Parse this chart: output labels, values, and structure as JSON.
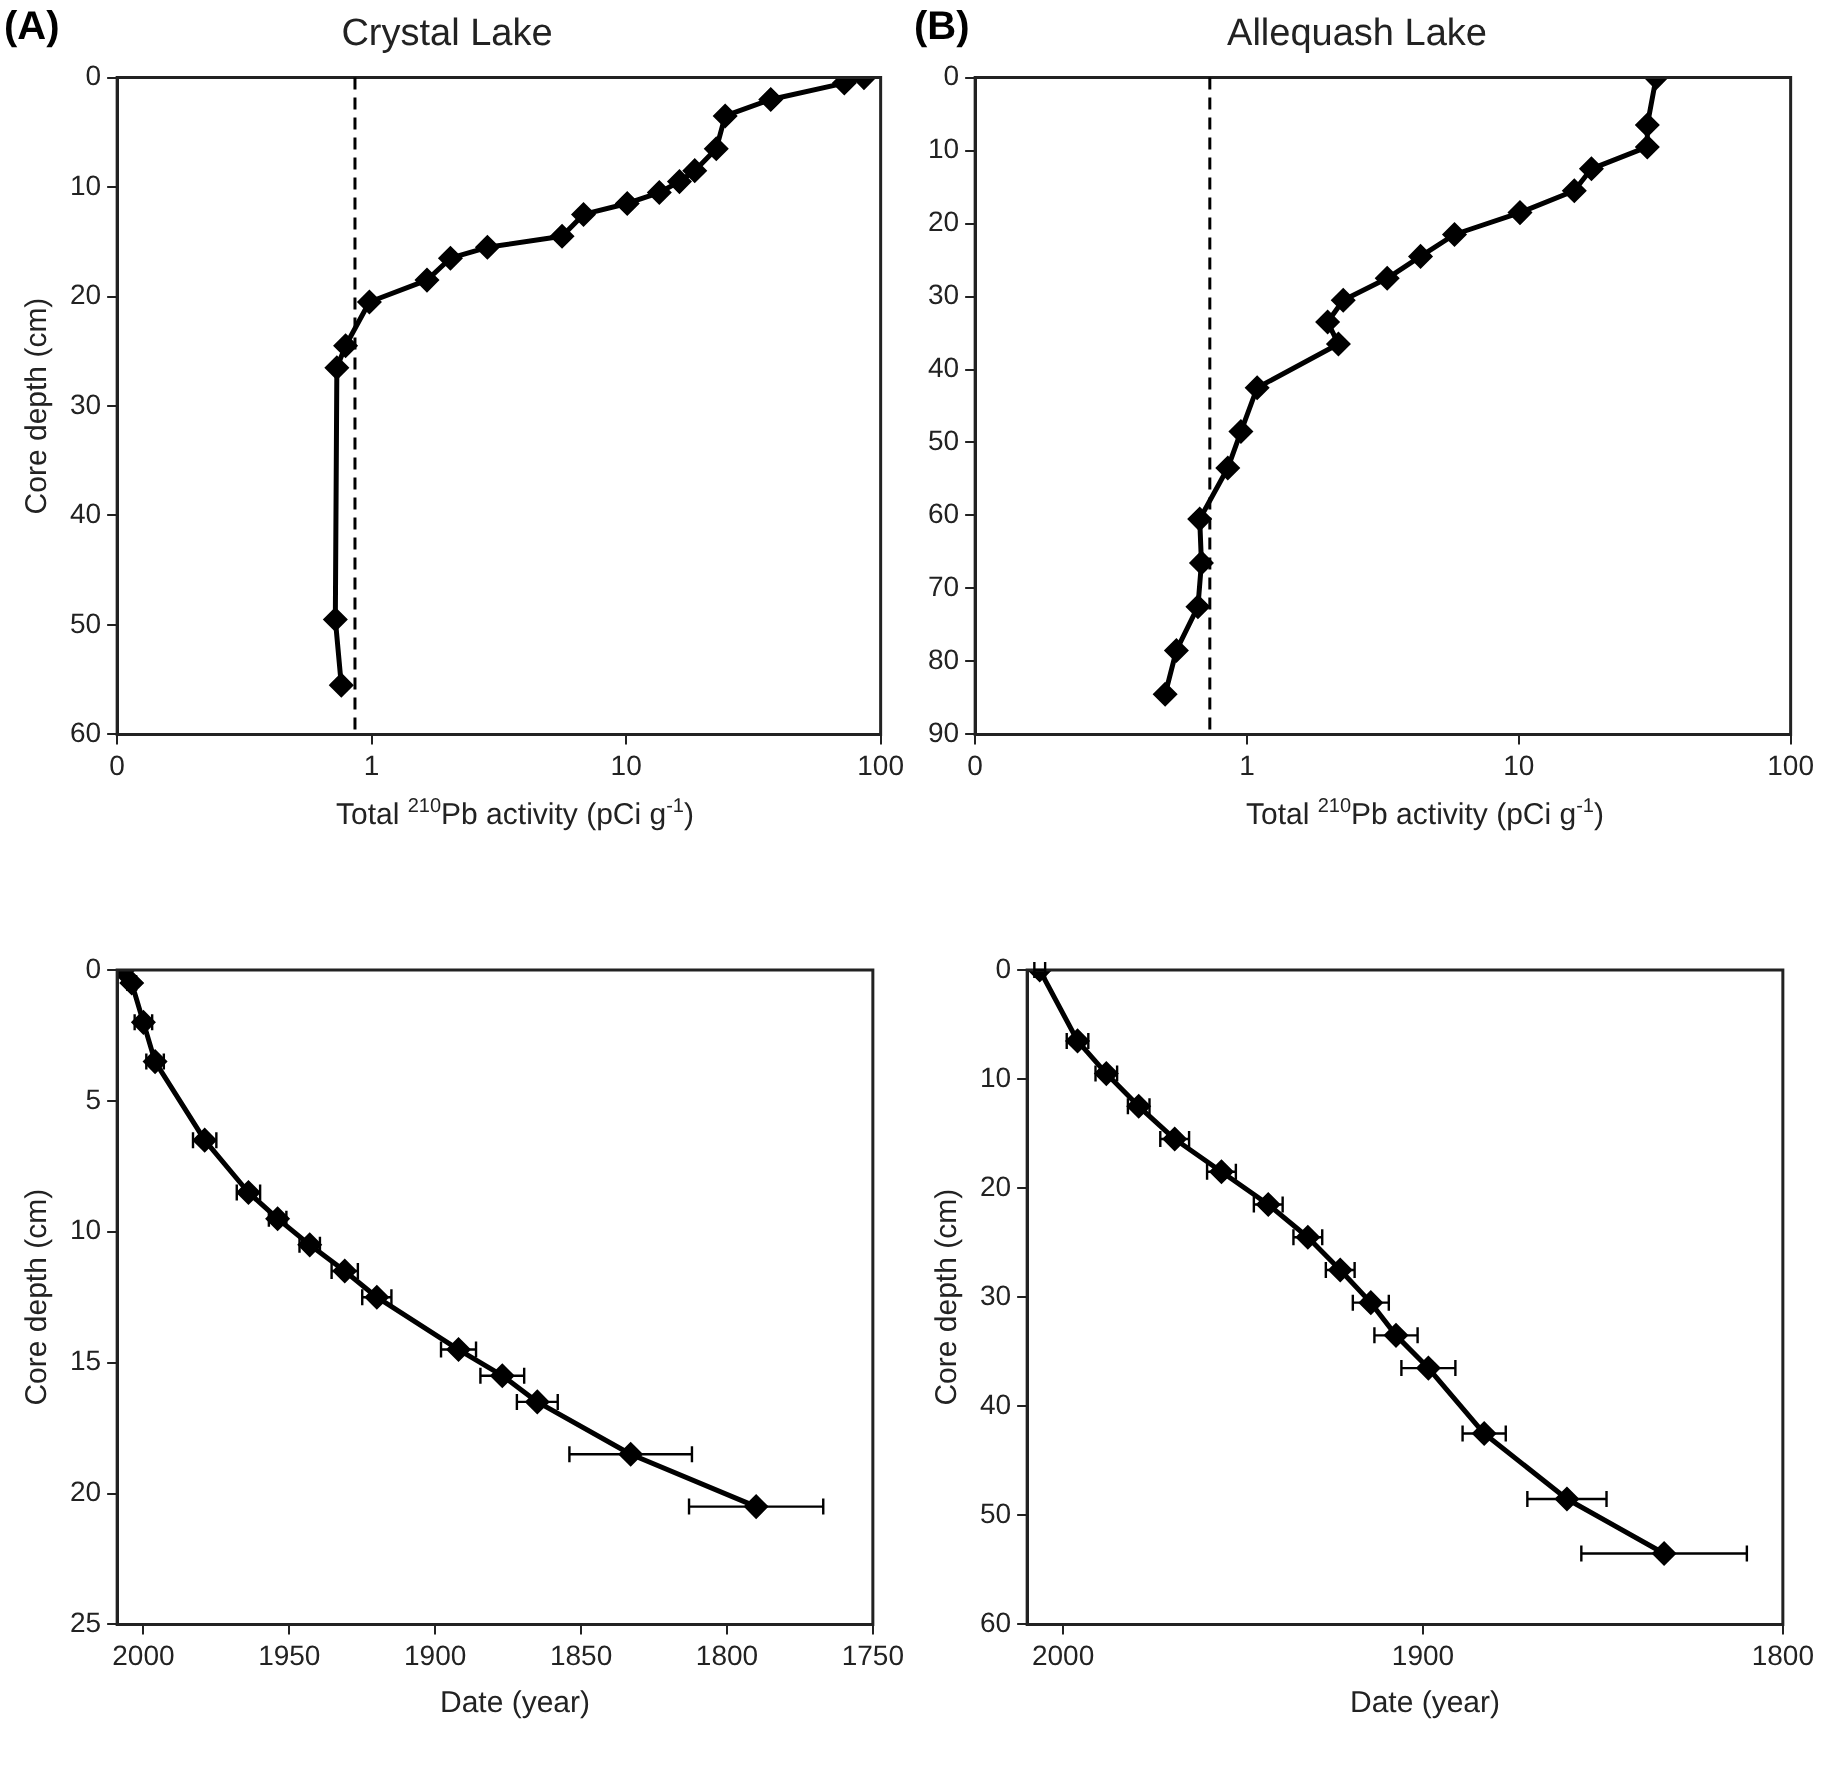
{
  "chart_data": [
    {
      "type": "line",
      "title": "Crystal Lake",
      "xlabel": "Total $^{210}$Pb activity (pCi g$^{-1}$)",
      "ylabel": "Core depth (cm)",
      "annotations": [
        "(A)"
      ],
      "log": "x",
      "xlim": [
        0.1,
        100
      ],
      "xticks": [
        {
          "value": 0.1,
          "label": "0"
        },
        1,
        10,
        100
      ],
      "ylim": [
        60,
        0
      ],
      "yticks": [
        0,
        10,
        20,
        30,
        40,
        50,
        60
      ],
      "grid": false,
      "legend": false,
      "marker": "diamond",
      "line_style": "solid",
      "series": [
        {
          "color": "#000000",
          "x": [
            86,
            72,
            37,
            24.5,
            22.6,
            18.6,
            16.2,
            13.5,
            10.1,
            6.8,
            5.6,
            2.85,
            2.04,
            1.65,
            0.98,
            0.79,
            0.73,
            0.72,
            0.76
          ],
          "values": [
            0,
            0.5,
            2,
            3.5,
            6.5,
            8.5,
            9.5,
            10.5,
            11.5,
            12.5,
            14.5,
            15.5,
            16.5,
            18.5,
            20.5,
            24.5,
            26.5,
            49.5,
            55.5
          ]
        }
      ],
      "ref_lines": [
        {
          "axis": "x",
          "value": 0.86,
          "line_style": "dashed",
          "color": "#000000"
        }
      ]
    },
    {
      "type": "line",
      "title": "Allequash Lake",
      "xlabel": "Total $^{210}$Pb activity (pCi g$^{-1}$)",
      "annotations": [
        "(B)"
      ],
      "log": "x",
      "xlim": [
        0.1,
        100
      ],
      "xticks": [
        {
          "value": 0.1,
          "label": "0"
        },
        1,
        10,
        100
      ],
      "ylim": [
        90,
        0
      ],
      "yticks": [
        0,
        10,
        20,
        30,
        40,
        50,
        60,
        70,
        80,
        90
      ],
      "grid": false,
      "legend": false,
      "marker": "diamond",
      "line_style": "solid",
      "series": [
        {
          "color": "#000000",
          "x": [
            32,
            29.7,
            29.7,
            18.5,
            16,
            10.1,
            5.8,
            4.35,
            3.28,
            2.26,
            1.98,
            2.17,
            1.09,
            0.95,
            0.85,
            0.67,
            0.68,
            0.66,
            0.55,
            0.5
          ],
          "values": [
            0,
            6.5,
            9.5,
            12.5,
            15.5,
            18.5,
            21.5,
            24.5,
            27.5,
            30.5,
            33.5,
            36.5,
            42.5,
            48.5,
            53.5,
            60.5,
            66.5,
            72.5,
            78.5,
            84.5
          ]
        }
      ],
      "ref_lines": [
        {
          "axis": "x",
          "value": 0.73,
          "line_style": "dashed",
          "color": "#000000"
        }
      ]
    },
    {
      "type": "line",
      "xlabel": "Date (year)",
      "ylabel": "Core depth (cm)",
      "xlim": [
        2009,
        1750
      ],
      "xticks": [
        2000,
        1950,
        1900,
        1850,
        1800,
        1750
      ],
      "ylim": [
        25,
        0
      ],
      "yticks": [
        0,
        5,
        10,
        15,
        20,
        25
      ],
      "grid": false,
      "legend": false,
      "marker": "diamond",
      "line_style": "solid",
      "series": [
        {
          "color": "#000000",
          "x": [
            2007,
            2004,
            2000,
            1996,
            1979,
            1964,
            1954,
            1943,
            1931,
            1920,
            1892,
            1877,
            1865,
            1833,
            1790
          ],
          "values": [
            0,
            0.5,
            2,
            3.5,
            6.5,
            8.5,
            9.5,
            10.5,
            11.5,
            12.5,
            14.5,
            15.5,
            16.5,
            18.5,
            20.5
          ],
          "xerrors": [
            null,
            1.5,
            3,
            3,
            4,
            4,
            3,
            3.5,
            4.5,
            5,
            6,
            7.5,
            7,
            21,
            23
          ]
        }
      ]
    },
    {
      "type": "line",
      "xlabel": "Date (year)",
      "ylabel": "Core depth (cm)",
      "xlim": [
        2010,
        1800
      ],
      "xticks": [
        2000,
        1900,
        1800
      ],
      "ylim": [
        60,
        0
      ],
      "yticks": [
        0,
        10,
        20,
        30,
        40,
        50,
        60
      ],
      "grid": false,
      "legend": false,
      "marker": "diamond",
      "line_style": "solid",
      "series": [
        {
          "color": "#000000",
          "x": [
            2006.5,
            1996,
            1988,
            1979,
            1969,
            1956,
            1943,
            1932,
            1923,
            1914.5,
            1907.5,
            1898.5,
            1883,
            1860,
            1833
          ],
          "values": [
            0,
            6.5,
            9.5,
            12.5,
            15.5,
            18.5,
            21.5,
            24.5,
            27.5,
            30.5,
            33.5,
            36.5,
            42.5,
            48.5,
            53.5
          ],
          "xerrors": [
            1.5,
            3,
            3,
            3,
            4,
            4,
            4,
            4,
            4,
            5,
            6,
            7.5,
            6,
            11,
            23
          ]
        }
      ]
    }
  ]
}
